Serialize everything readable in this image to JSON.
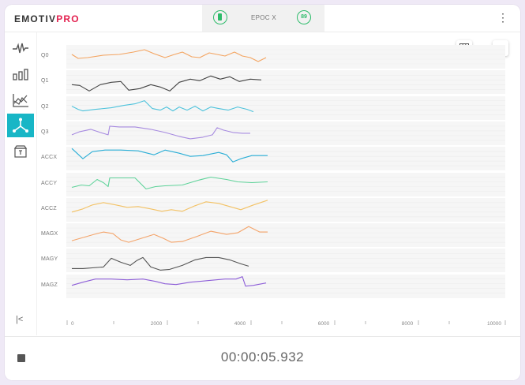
{
  "app": {
    "logo_part1": "EMOTIV",
    "logo_part2": "PRO",
    "brand_color": "#e3204f",
    "accent_color": "#18b6c6"
  },
  "device": {
    "name": "EPOC X",
    "battery_icon": "battery-icon",
    "contact_quality": "89",
    "status_color": "#2dbb6a"
  },
  "header": {
    "menu_icon": "kebab-menu-icon"
  },
  "sidebar": {
    "items": [
      {
        "name": "eeg",
        "icon": "waveform-icon",
        "active": false
      },
      {
        "name": "band-power",
        "icon": "bar-chart-icon",
        "active": false
      },
      {
        "name": "performance-metrics",
        "icon": "line-chart-icon",
        "active": false
      },
      {
        "name": "motion",
        "icon": "motion-axes-icon",
        "active": true
      },
      {
        "name": "markers",
        "icon": "marker-icon",
        "active": false
      }
    ],
    "collapse_icon": "collapse-left-icon"
  },
  "toolbar": {
    "grid_icon": "grid-icon",
    "visibility_icon": "eye-icon"
  },
  "chart_data": {
    "type": "line",
    "series": [
      {
        "name": "Q0",
        "color": "#f4a460"
      },
      {
        "name": "Q1",
        "color": "#444444"
      },
      {
        "name": "Q2",
        "color": "#4fc3dc"
      },
      {
        "name": "Q3",
        "color": "#a78be0"
      },
      {
        "name": "ACCX",
        "color": "#2aaed6"
      },
      {
        "name": "ACCY",
        "color": "#5fd39a"
      },
      {
        "name": "ACCZ",
        "color": "#f3c265"
      },
      {
        "name": "MAGX",
        "color": "#f4a46a"
      },
      {
        "name": "MAGY",
        "color": "#555555"
      },
      {
        "name": "MAGZ",
        "color": "#8e5fd8"
      }
    ],
    "x_ticks": [
      "0",
      "2000",
      "4000",
      "6000",
      "8000",
      "10000"
    ],
    "xlim": [
      0,
      10000
    ],
    "grid": true
  },
  "recording": {
    "stop_icon": "stop-icon",
    "elapsed": "00:00:05.932"
  }
}
